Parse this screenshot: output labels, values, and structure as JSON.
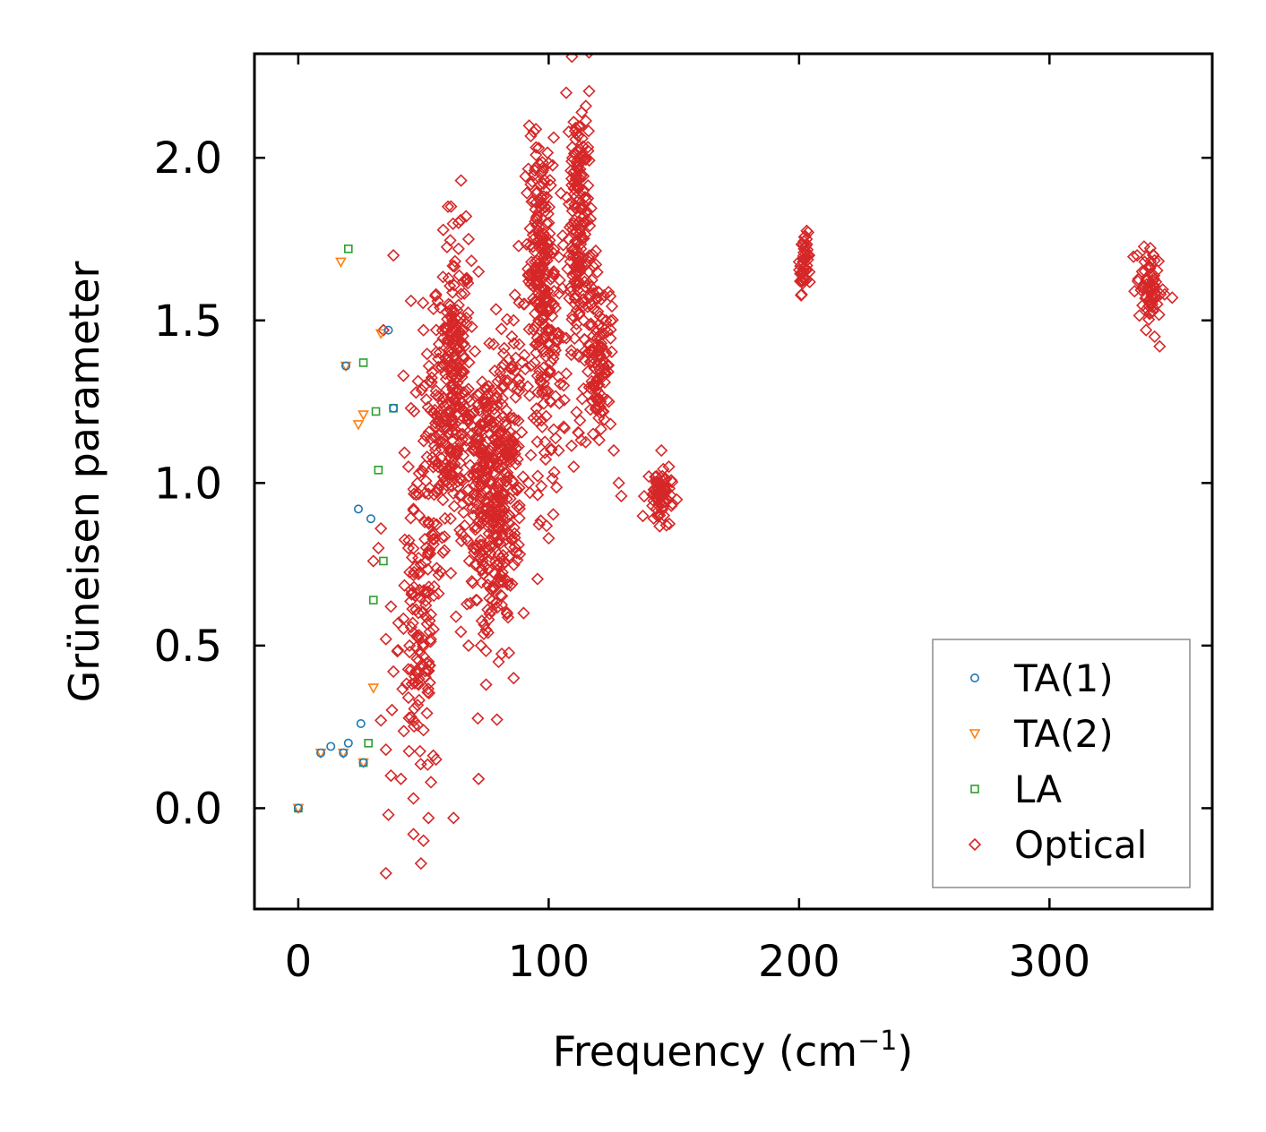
{
  "chart_data": {
    "type": "scatter",
    "title": "",
    "xlabel": "Frequency (cm",
    "xlabel_sup": "−1",
    "xlabel_tail": ")",
    "ylabel": "Grüneisen parameter",
    "xlim": [
      -17.5,
      365
    ],
    "ylim": [
      -0.31,
      2.32
    ],
    "xticks": [
      0,
      100,
      200,
      300
    ],
    "xtick_labels": [
      "0",
      "100",
      "200",
      "300"
    ],
    "yticks": [
      0.0,
      0.5,
      1.0,
      1.5,
      2.0
    ],
    "ytick_labels": [
      "0.0",
      "0.5",
      "1.0",
      "1.5",
      "2.0"
    ],
    "grid": false,
    "legend_position": "bottom-right",
    "series": [
      {
        "name": "TA(1)",
        "marker": "circle",
        "color": "#1f77b4",
        "points": [
          [
            0,
            0.0
          ],
          [
            9,
            0.17
          ],
          [
            13,
            0.19
          ],
          [
            18,
            0.17
          ],
          [
            20,
            0.2
          ],
          [
            25,
            0.26
          ],
          [
            26,
            0.14
          ],
          [
            19,
            1.36
          ],
          [
            24,
            0.92
          ],
          [
            29,
            0.89
          ],
          [
            36,
            1.47
          ],
          [
            38,
            1.23
          ]
        ]
      },
      {
        "name": "TA(2)",
        "marker": "triangle",
        "color": "#ff7f0e",
        "points": [
          [
            0,
            0.0
          ],
          [
            9,
            0.17
          ],
          [
            18,
            0.17
          ],
          [
            26,
            0.14
          ],
          [
            17,
            1.68
          ],
          [
            19,
            1.36
          ],
          [
            24,
            1.18
          ],
          [
            26,
            1.21
          ],
          [
            33,
            1.46
          ],
          [
            30,
            0.37
          ]
        ]
      },
      {
        "name": "LA",
        "marker": "square",
        "color": "#2ca02c",
        "points": [
          [
            0,
            0.0
          ],
          [
            20,
            1.72
          ],
          [
            26,
            1.37
          ],
          [
            31,
            1.22
          ],
          [
            32,
            1.04
          ],
          [
            34,
            0.76
          ],
          [
            30,
            0.64
          ],
          [
            28,
            0.2
          ],
          [
            26,
            0.14
          ],
          [
            38,
            1.23
          ]
        ]
      },
      {
        "name": "Optical",
        "marker": "diamond",
        "color": "#d62728",
        "points": [
          [
            38,
            1.7
          ],
          [
            34,
            1.47
          ],
          [
            45,
            1.56
          ],
          [
            42,
            1.33
          ],
          [
            45,
            1.23
          ],
          [
            50,
            1.47
          ],
          [
            55,
            1.58
          ],
          [
            44,
            1.05
          ],
          [
            46,
            0.92
          ],
          [
            33,
            0.86
          ],
          [
            32,
            0.8
          ],
          [
            30,
            0.76
          ],
          [
            37,
            0.62
          ],
          [
            40,
            0.57
          ],
          [
            35,
            0.52
          ],
          [
            38,
            0.42
          ],
          [
            44,
            0.34
          ],
          [
            33,
            0.27
          ],
          [
            35,
            0.18
          ],
          [
            37,
            0.1
          ],
          [
            41,
            0.09
          ],
          [
            46,
            0.03
          ],
          [
            36,
            -0.02
          ],
          [
            46,
            -0.08
          ],
          [
            52,
            -0.03
          ],
          [
            50,
            -0.1
          ],
          [
            49,
            -0.17
          ],
          [
            35,
            -0.2
          ],
          [
            55,
            0.15
          ],
          [
            53,
            0.08
          ],
          [
            50,
            0.24
          ],
          [
            48,
            0.38
          ],
          [
            52,
            0.45
          ],
          [
            54,
            0.55
          ],
          [
            56,
            0.66
          ],
          [
            48,
            0.72
          ],
          [
            44,
            0.8
          ],
          [
            52,
            0.88
          ],
          [
            58,
            0.98
          ],
          [
            56,
            1.06
          ],
          [
            60,
            1.15
          ],
          [
            58,
            1.26
          ],
          [
            62,
            1.36
          ],
          [
            64,
            1.46
          ],
          [
            60,
            1.55
          ],
          [
            66,
            1.62
          ],
          [
            61,
            1.85
          ],
          [
            64,
            1.8
          ],
          [
            65,
            1.93
          ],
          [
            67,
            1.82
          ],
          [
            64,
            1.72
          ],
          [
            68,
            1.75
          ],
          [
            72,
            1.65
          ],
          [
            66,
            1.2
          ],
          [
            70,
            1.1
          ],
          [
            68,
            0.98
          ],
          [
            72,
            0.88
          ],
          [
            70,
            0.8
          ],
          [
            74,
            0.72
          ],
          [
            71,
            0.64
          ],
          [
            68,
            0.5
          ],
          [
            73,
            0.5
          ],
          [
            75,
            0.38
          ],
          [
            72,
            0.09
          ],
          [
            62,
            -0.03
          ],
          [
            76,
            0.58
          ],
          [
            78,
            0.68
          ],
          [
            80,
            0.78
          ],
          [
            82,
            0.86
          ],
          [
            78,
            0.95
          ],
          [
            84,
            1.02
          ],
          [
            80,
            1.12
          ],
          [
            86,
            1.2
          ],
          [
            82,
            1.3
          ],
          [
            84,
            1.38
          ],
          [
            88,
            1.32
          ],
          [
            86,
            1.5
          ],
          [
            90,
            1.55
          ],
          [
            92,
            1.62
          ],
          [
            88,
            0.81
          ],
          [
            92,
            1.0
          ],
          [
            94,
            1.2
          ],
          [
            95,
            1.4
          ],
          [
            96,
            1.5
          ],
          [
            98,
            1.6
          ],
          [
            94,
            1.75
          ],
          [
            97,
            1.88
          ],
          [
            96,
            2.03
          ],
          [
            94,
            2.08
          ],
          [
            100,
            1.8
          ],
          [
            102,
            1.65
          ],
          [
            100,
            0.83
          ],
          [
            90,
            0.6
          ],
          [
            86,
            0.4
          ],
          [
            80,
            0.45
          ],
          [
            98,
            1.92
          ],
          [
            102,
            1.55
          ],
          [
            104,
            1.45
          ],
          [
            106,
            1.3
          ],
          [
            104,
            1.1
          ],
          [
            108,
            1.75
          ],
          [
            108,
            2.08
          ],
          [
            110,
            2.11
          ],
          [
            107,
            2.2
          ],
          [
            112,
            2.0
          ],
          [
            114,
            1.9
          ],
          [
            112,
            1.7
          ],
          [
            115,
            1.6
          ],
          [
            114,
            1.5
          ],
          [
            116,
            1.4
          ],
          [
            118,
            1.3
          ],
          [
            117,
            1.55
          ],
          [
            120,
            1.45
          ],
          [
            122,
            1.35
          ],
          [
            124,
            1.25
          ],
          [
            126,
            1.1
          ],
          [
            128,
            1.0
          ],
          [
            129,
            0.96
          ],
          [
            123,
            1.4
          ],
          [
            120,
            1.2
          ],
          [
            110,
            1.05
          ],
          [
            140,
            1.02
          ],
          [
            142,
            0.98
          ],
          [
            144,
            0.95
          ],
          [
            146,
            0.9
          ],
          [
            147,
            0.87
          ],
          [
            145,
            1.1
          ],
          [
            148,
            1.05
          ],
          [
            143,
            1.0
          ],
          [
            146,
            0.98
          ],
          [
            149,
            0.93
          ],
          [
            200,
            1.68
          ],
          [
            201,
            1.62
          ],
          [
            202,
            1.72
          ],
          [
            203,
            1.75
          ],
          [
            204,
            1.7
          ],
          [
            201,
            1.58
          ],
          [
            202,
            1.65
          ],
          [
            335,
            1.7
          ],
          [
            337,
            1.65
          ],
          [
            339,
            1.6
          ],
          [
            341,
            1.55
          ],
          [
            342,
            1.45
          ],
          [
            344,
            1.42
          ],
          [
            346,
            1.58
          ],
          [
            349,
            1.57
          ],
          [
            338,
            1.68
          ],
          [
            340,
            1.52
          ]
        ]
      }
    ],
    "clusters": [
      {
        "name": "Optical",
        "cx": 62,
        "cy": 1.3,
        "sx": 3.5,
        "sy": 0.22,
        "n": 240
      },
      {
        "name": "Optical",
        "cx": 54,
        "cy": 1.05,
        "sx": 4.0,
        "sy": 0.18,
        "n": 90
      },
      {
        "name": "Optical",
        "cx": 48,
        "cy": 0.5,
        "sx": 4.0,
        "sy": 0.22,
        "n": 110
      },
      {
        "name": "Optical",
        "cx": 74,
        "cy": 1.0,
        "sx": 4.0,
        "sy": 0.18,
        "n": 200
      },
      {
        "name": "Optical",
        "cx": 80,
        "cy": 0.9,
        "sx": 3.5,
        "sy": 0.22,
        "n": 140
      },
      {
        "name": "Optical",
        "cx": 84,
        "cy": 1.15,
        "sx": 3.0,
        "sy": 0.2,
        "n": 90
      },
      {
        "name": "Optical",
        "cx": 97,
        "cy": 1.65,
        "sx": 3.0,
        "sy": 0.2,
        "n": 200
      },
      {
        "name": "Optical",
        "cx": 100,
        "cy": 1.35,
        "sx": 3.5,
        "sy": 0.22,
        "n": 80
      },
      {
        "name": "Optical",
        "cx": 112,
        "cy": 1.75,
        "sx": 2.5,
        "sy": 0.25,
        "n": 200
      },
      {
        "name": "Optical",
        "cx": 120,
        "cy": 1.4,
        "sx": 2.5,
        "sy": 0.12,
        "n": 110
      },
      {
        "name": "Optical",
        "cx": 144,
        "cy": 0.96,
        "sx": 2.5,
        "sy": 0.04,
        "n": 60
      },
      {
        "name": "Optical",
        "cx": 202,
        "cy": 1.67,
        "sx": 0.8,
        "sy": 0.05,
        "n": 40
      },
      {
        "name": "Optical",
        "cx": 340,
        "cy": 1.6,
        "sx": 2.5,
        "sy": 0.06,
        "n": 60
      }
    ]
  }
}
